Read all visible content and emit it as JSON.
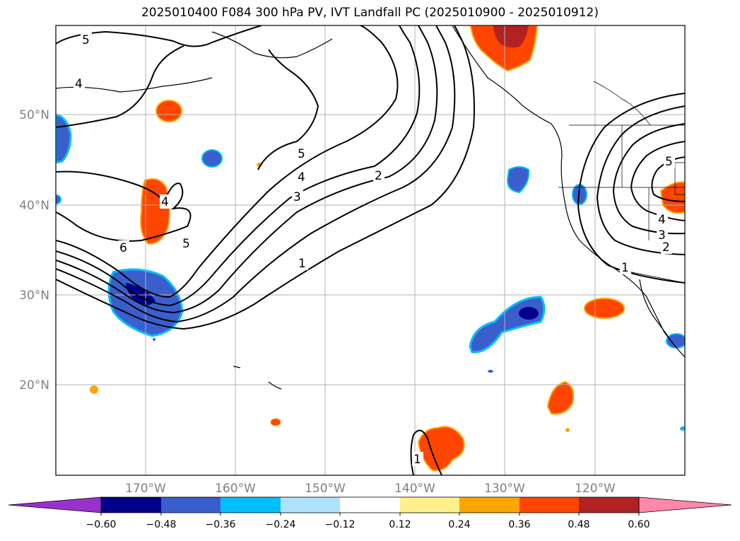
{
  "title": "2025010400 F084 300 hPa PV, IVT Landfall PC (2025010900 - 2025010912)",
  "map": {
    "lat_labels": [
      "50°N",
      "40°N",
      "30°N",
      "20°N"
    ],
    "lon_labels": [
      "170°W",
      "160°W",
      "150°W",
      "140°W",
      "130°W",
      "120°W"
    ],
    "contour_labels": [
      {
        "text": "5",
        "id": "c5-nw"
      },
      {
        "text": "4",
        "id": "c4-nw"
      },
      {
        "text": "4",
        "id": "c4-w"
      },
      {
        "text": "6",
        "id": "c6"
      },
      {
        "text": "5",
        "id": "c5-w"
      },
      {
        "text": "5",
        "id": "c5-mid"
      },
      {
        "text": "4",
        "id": "c4-mid"
      },
      {
        "text": "3",
        "id": "c3-mid"
      },
      {
        "text": "2",
        "id": "c2-mid"
      },
      {
        "text": "1",
        "id": "c1-mid"
      },
      {
        "text": "5",
        "id": "c5-e"
      },
      {
        "text": "4",
        "id": "c4-e"
      },
      {
        "text": "3",
        "id": "c3-e"
      },
      {
        "text": "2",
        "id": "c2-e"
      },
      {
        "text": "1",
        "id": "c1-e"
      },
      {
        "text": "1",
        "id": "c1-s"
      }
    ]
  },
  "colorbar": {
    "ticks": [
      "−0.60",
      "−0.48",
      "−0.36",
      "−0.24",
      "−0.12",
      "0.12",
      "0.24",
      "0.36",
      "0.48",
      "0.60"
    ],
    "colors": [
      "#9932cc",
      "#00008b",
      "#3a5fcd",
      "#00bfff",
      "#b0e2ff",
      "#ffffff",
      "#fff08c",
      "#ffa500",
      "#ff4500",
      "#b22222",
      "#ff88aa"
    ]
  }
}
